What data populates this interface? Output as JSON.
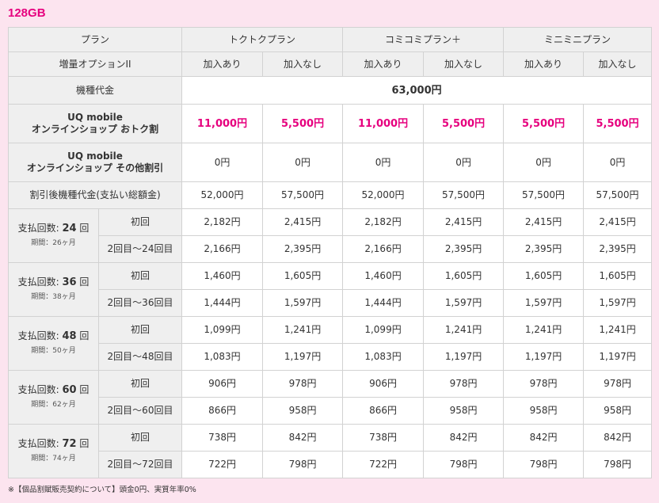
{
  "title": "128GB",
  "header": {
    "plan_label": "プラン",
    "plans": [
      "トクトクプラン",
      "コミコミプラン＋",
      "ミニミニプラン"
    ],
    "option_label": "増量オプションII",
    "options": [
      "加入あり",
      "加入なし",
      "加入あり",
      "加入なし",
      "加入あり",
      "加入なし"
    ]
  },
  "device_price": {
    "label": "機種代金",
    "value": "63,000円"
  },
  "online_discount": {
    "label_line1": "UQ mobile",
    "label_line2": "オンラインショップ おトク割",
    "values": [
      "11,000円",
      "5,500円",
      "11,000円",
      "5,500円",
      "5,500円",
      "5,500円"
    ]
  },
  "other_discount": {
    "label_line1": "UQ mobile",
    "label_line2": "オンラインショップ その他割引",
    "values": [
      "0円",
      "0円",
      "0円",
      "0円",
      "0円",
      "0円"
    ]
  },
  "after_discount": {
    "label": "割引後機種代金(支払い総額金)",
    "values": [
      "52,000円",
      "57,500円",
      "52,000円",
      "57,500円",
      "57,500円",
      "57,500円"
    ]
  },
  "installments": [
    {
      "count_prefix": "支払回数:",
      "count": "24",
      "count_suffix": "回",
      "period": "期間：26ヶ月",
      "first_label": "初回",
      "rest_label": "2回目〜24回目",
      "first": [
        "2,182円",
        "2,415円",
        "2,182円",
        "2,415円",
        "2,415円",
        "2,415円"
      ],
      "rest": [
        "2,166円",
        "2,395円",
        "2,166円",
        "2,395円",
        "2,395円",
        "2,395円"
      ]
    },
    {
      "count_prefix": "支払回数:",
      "count": "36",
      "count_suffix": "回",
      "period": "期間：38ヶ月",
      "first_label": "初回",
      "rest_label": "2回目〜36回目",
      "first": [
        "1,460円",
        "1,605円",
        "1,460円",
        "1,605円",
        "1,605円",
        "1,605円"
      ],
      "rest": [
        "1,444円",
        "1,597円",
        "1,444円",
        "1,597円",
        "1,597円",
        "1,597円"
      ]
    },
    {
      "count_prefix": "支払回数:",
      "count": "48",
      "count_suffix": "回",
      "period": "期間：50ヶ月",
      "first_label": "初回",
      "rest_label": "2回目〜48回目",
      "first": [
        "1,099円",
        "1,241円",
        "1,099円",
        "1,241円",
        "1,241円",
        "1,241円"
      ],
      "rest": [
        "1,083円",
        "1,197円",
        "1,083円",
        "1,197円",
        "1,197円",
        "1,197円"
      ]
    },
    {
      "count_prefix": "支払回数:",
      "count": "60",
      "count_suffix": "回",
      "period": "期間：62ヶ月",
      "first_label": "初回",
      "rest_label": "2回目〜60回目",
      "first": [
        "906円",
        "978円",
        "906円",
        "978円",
        "978円",
        "978円"
      ],
      "rest": [
        "866円",
        "958円",
        "866円",
        "958円",
        "958円",
        "958円"
      ]
    },
    {
      "count_prefix": "支払回数:",
      "count": "72",
      "count_suffix": "回",
      "period": "期間：74ヶ月",
      "first_label": "初回",
      "rest_label": "2回目〜72回目",
      "first": [
        "738円",
        "842円",
        "738円",
        "842円",
        "842円",
        "842円"
      ],
      "rest": [
        "722円",
        "798円",
        "722円",
        "798円",
        "798円",
        "798円"
      ]
    }
  ],
  "footnote": "※【個品割賦販売契約について】頭金0円、実質年率0%",
  "colors": {
    "accent": "#e6007e",
    "background": "#fce4ef",
    "label_bg": "#efefef",
    "border": "#d2d2d2"
  }
}
